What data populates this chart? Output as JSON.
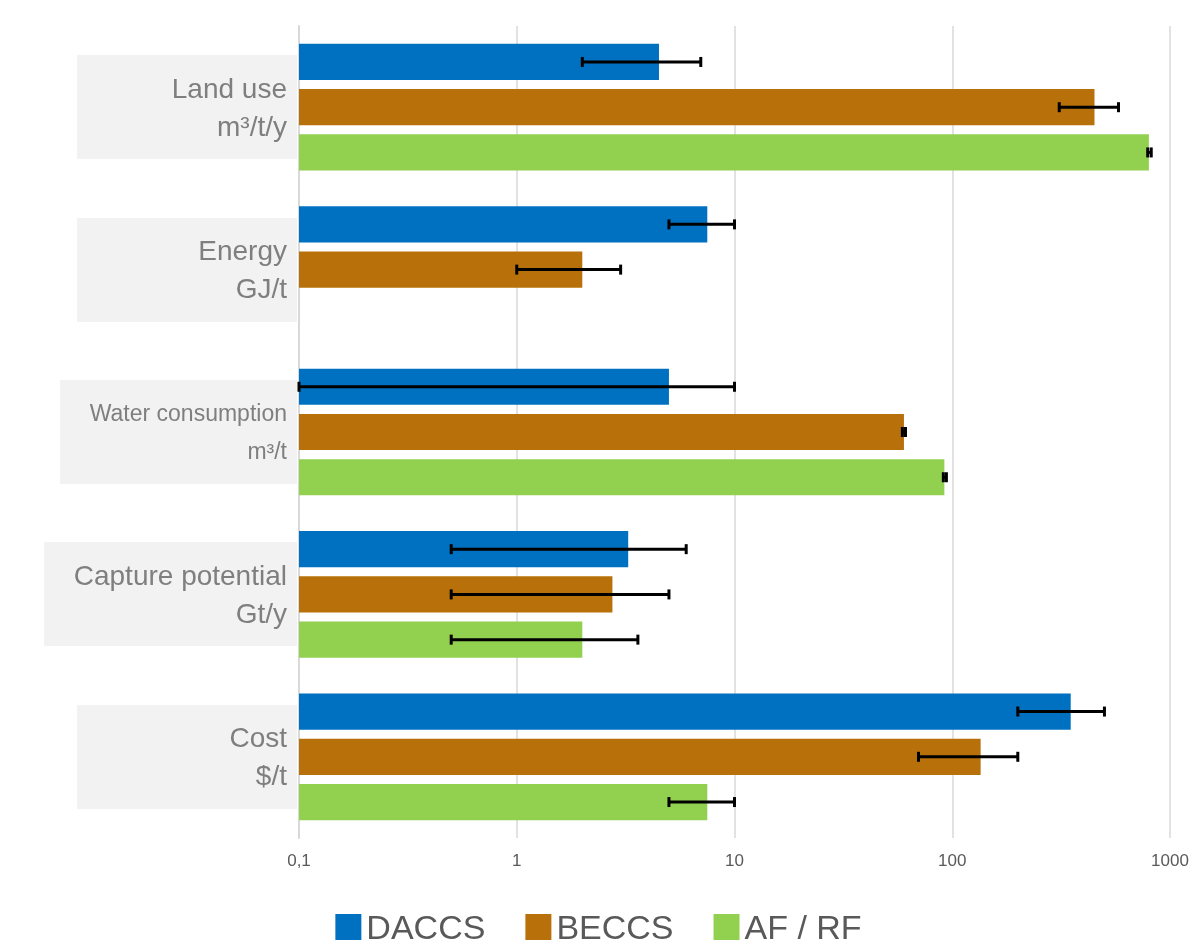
{
  "chart_data": {
    "type": "bar",
    "orientation": "horizontal",
    "log": "x",
    "categories": [
      "Land use m³/t/y",
      "Energy GJ/t",
      "Water consumption m³/t",
      "Capture potential Gt/y",
      "Cost $/t"
    ],
    "series": [
      {
        "name": "DACCS",
        "color": "#0070c0",
        "values": [
          4.5,
          7.5,
          5,
          3.25,
          350
        ],
        "errors": [
          [
            2,
            7
          ],
          [
            5,
            10
          ],
          [
            0.1,
            10
          ],
          [
            0.5,
            6
          ],
          [
            200,
            500
          ]
        ]
      },
      {
        "name": "BECCS",
        "color": "#b8700a",
        "values": [
          450,
          2,
          60,
          2.75,
          135
        ],
        "errors": [
          [
            310,
            580
          ],
          [
            1,
            3
          ],
          [
            59,
            61
          ],
          [
            0.5,
            5
          ],
          [
            70,
            200
          ]
        ]
      },
      {
        "name": "AF / RF",
        "color": "#92d050",
        "values": [
          800,
          null,
          92,
          2,
          7.5
        ],
        "errors": [
          [
            790,
            820
          ],
          null,
          [
            91,
            94
          ],
          [
            0.5,
            3.6
          ],
          [
            5,
            10
          ]
        ]
      }
    ],
    "xlim": [
      0.1,
      1000
    ],
    "xticks": [
      {
        "value": 0.1,
        "label": "0,1"
      },
      1,
      10,
      100,
      1000
    ],
    "grid": "x",
    "legend": "bottom"
  }
}
